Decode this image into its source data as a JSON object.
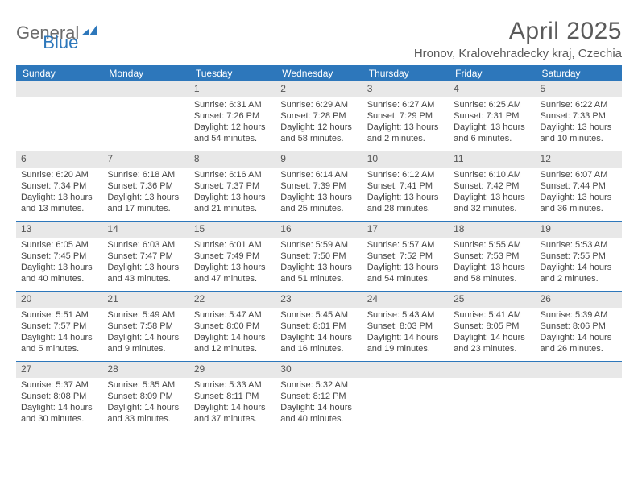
{
  "logo": {
    "text1": "General",
    "text2": "Blue"
  },
  "title": "April 2025",
  "location": "Hronov, Kralovehradecky kraj, Czechia",
  "colors": {
    "brand_blue": "#2d77bb",
    "header_gray": "#e8e8e8",
    "text_gray": "#5a5a5a",
    "body_text": "#454545",
    "white": "#ffffff"
  },
  "calendar": {
    "day_headers": [
      "Sunday",
      "Monday",
      "Tuesday",
      "Wednesday",
      "Thursday",
      "Friday",
      "Saturday"
    ],
    "first_weekday_index": 2,
    "days": [
      {
        "n": 1,
        "sunrise": "6:31 AM",
        "sunset": "7:26 PM",
        "daylight": "12 hours and 54 minutes."
      },
      {
        "n": 2,
        "sunrise": "6:29 AM",
        "sunset": "7:28 PM",
        "daylight": "12 hours and 58 minutes."
      },
      {
        "n": 3,
        "sunrise": "6:27 AM",
        "sunset": "7:29 PM",
        "daylight": "13 hours and 2 minutes."
      },
      {
        "n": 4,
        "sunrise": "6:25 AM",
        "sunset": "7:31 PM",
        "daylight": "13 hours and 6 minutes."
      },
      {
        "n": 5,
        "sunrise": "6:22 AM",
        "sunset": "7:33 PM",
        "daylight": "13 hours and 10 minutes."
      },
      {
        "n": 6,
        "sunrise": "6:20 AM",
        "sunset": "7:34 PM",
        "daylight": "13 hours and 13 minutes."
      },
      {
        "n": 7,
        "sunrise": "6:18 AM",
        "sunset": "7:36 PM",
        "daylight": "13 hours and 17 minutes."
      },
      {
        "n": 8,
        "sunrise": "6:16 AM",
        "sunset": "7:37 PM",
        "daylight": "13 hours and 21 minutes."
      },
      {
        "n": 9,
        "sunrise": "6:14 AM",
        "sunset": "7:39 PM",
        "daylight": "13 hours and 25 minutes."
      },
      {
        "n": 10,
        "sunrise": "6:12 AM",
        "sunset": "7:41 PM",
        "daylight": "13 hours and 28 minutes."
      },
      {
        "n": 11,
        "sunrise": "6:10 AM",
        "sunset": "7:42 PM",
        "daylight": "13 hours and 32 minutes."
      },
      {
        "n": 12,
        "sunrise": "6:07 AM",
        "sunset": "7:44 PM",
        "daylight": "13 hours and 36 minutes."
      },
      {
        "n": 13,
        "sunrise": "6:05 AM",
        "sunset": "7:45 PM",
        "daylight": "13 hours and 40 minutes."
      },
      {
        "n": 14,
        "sunrise": "6:03 AM",
        "sunset": "7:47 PM",
        "daylight": "13 hours and 43 minutes."
      },
      {
        "n": 15,
        "sunrise": "6:01 AM",
        "sunset": "7:49 PM",
        "daylight": "13 hours and 47 minutes."
      },
      {
        "n": 16,
        "sunrise": "5:59 AM",
        "sunset": "7:50 PM",
        "daylight": "13 hours and 51 minutes."
      },
      {
        "n": 17,
        "sunrise": "5:57 AM",
        "sunset": "7:52 PM",
        "daylight": "13 hours and 54 minutes."
      },
      {
        "n": 18,
        "sunrise": "5:55 AM",
        "sunset": "7:53 PM",
        "daylight": "13 hours and 58 minutes."
      },
      {
        "n": 19,
        "sunrise": "5:53 AM",
        "sunset": "7:55 PM",
        "daylight": "14 hours and 2 minutes."
      },
      {
        "n": 20,
        "sunrise": "5:51 AM",
        "sunset": "7:57 PM",
        "daylight": "14 hours and 5 minutes."
      },
      {
        "n": 21,
        "sunrise": "5:49 AM",
        "sunset": "7:58 PM",
        "daylight": "14 hours and 9 minutes."
      },
      {
        "n": 22,
        "sunrise": "5:47 AM",
        "sunset": "8:00 PM",
        "daylight": "14 hours and 12 minutes."
      },
      {
        "n": 23,
        "sunrise": "5:45 AM",
        "sunset": "8:01 PM",
        "daylight": "14 hours and 16 minutes."
      },
      {
        "n": 24,
        "sunrise": "5:43 AM",
        "sunset": "8:03 PM",
        "daylight": "14 hours and 19 minutes."
      },
      {
        "n": 25,
        "sunrise": "5:41 AM",
        "sunset": "8:05 PM",
        "daylight": "14 hours and 23 minutes."
      },
      {
        "n": 26,
        "sunrise": "5:39 AM",
        "sunset": "8:06 PM",
        "daylight": "14 hours and 26 minutes."
      },
      {
        "n": 27,
        "sunrise": "5:37 AM",
        "sunset": "8:08 PM",
        "daylight": "14 hours and 30 minutes."
      },
      {
        "n": 28,
        "sunrise": "5:35 AM",
        "sunset": "8:09 PM",
        "daylight": "14 hours and 33 minutes."
      },
      {
        "n": 29,
        "sunrise": "5:33 AM",
        "sunset": "8:11 PM",
        "daylight": "14 hours and 37 minutes."
      },
      {
        "n": 30,
        "sunrise": "5:32 AM",
        "sunset": "8:12 PM",
        "daylight": "14 hours and 40 minutes."
      }
    ],
    "labels": {
      "sunrise": "Sunrise:",
      "sunset": "Sunset:",
      "daylight": "Daylight:"
    }
  }
}
